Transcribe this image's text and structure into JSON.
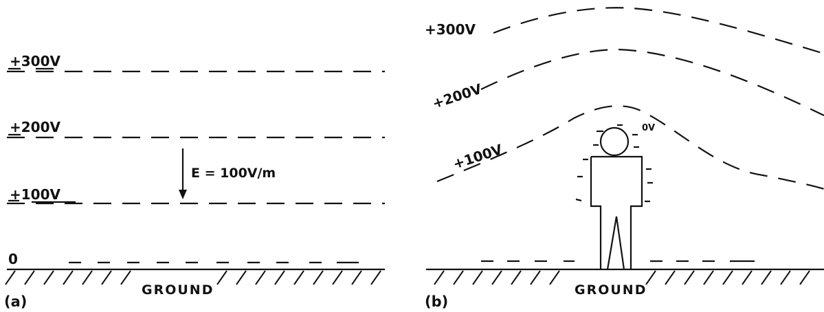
{
  "panel_a": {
    "caption": "(a)",
    "labels": {
      "v300": "+300V",
      "v200": "+200V",
      "v100": "+100V",
      "v0": "0"
    },
    "field_label": "E = 100V/m",
    "ground_label": "GROUND"
  },
  "panel_b": {
    "caption": "(b)",
    "labels": {
      "v300": "+300V",
      "v200": "+200V",
      "v100": "+100V"
    },
    "person_potential": "0V",
    "ground_label": "GROUND"
  }
}
